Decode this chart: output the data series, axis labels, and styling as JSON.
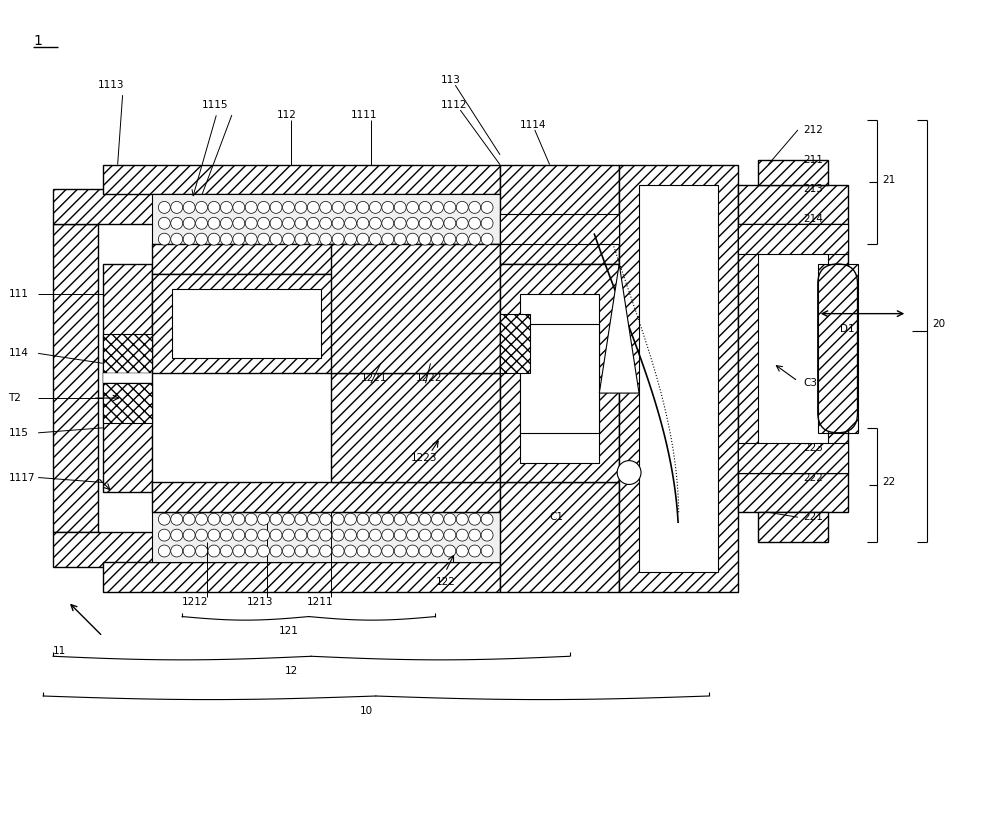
{
  "bg_color": "#ffffff",
  "figsize": [
    10.0,
    8.13
  ],
  "dpi": 100,
  "labels": {
    "main": "1",
    "n1113": "1113",
    "n1115": "1115",
    "n112": "112",
    "n1111": "1111",
    "n113": "113",
    "n1112": "1112",
    "n1114": "1114",
    "n111": "111",
    "n114": "114",
    "n115": "115",
    "n1117": "1117",
    "nT2": "T2",
    "n212": "212",
    "n211": "211",
    "n213": "213",
    "n214": "214",
    "n21": "21",
    "n20": "20",
    "nC3": "C3",
    "n223": "223",
    "n222": "222",
    "n221": "221",
    "n22": "22",
    "n1221": "1221",
    "n1222": "1222",
    "n1223": "1223",
    "n1212": "1212",
    "n1213": "1213",
    "n1211": "1211",
    "nC1": "C1",
    "n122": "122",
    "n121": "121",
    "n11": "11",
    "n12": "12",
    "n10": "10",
    "nD1": "D1"
  }
}
